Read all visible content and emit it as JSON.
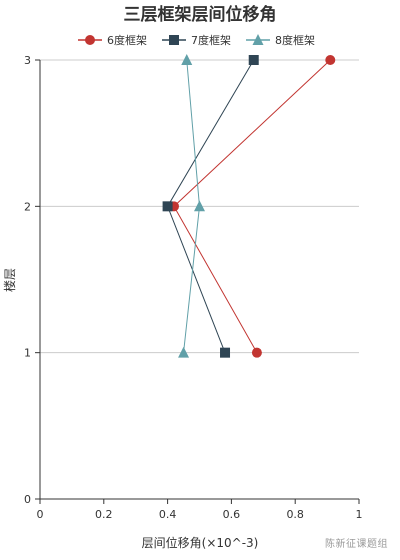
{
  "chart_data": {
    "type": "line",
    "title": "三层框架层间位移角",
    "xlabel": "层间位移角(×10^-3)",
    "ylabel": "楼层",
    "xlim": [
      0,
      1
    ],
    "ylim": [
      0,
      3
    ],
    "x_ticks": [
      "0",
      "0.2",
      "0.4",
      "0.6",
      "0.8",
      "1"
    ],
    "y_ticks": [
      "0",
      "1",
      "2",
      "3"
    ],
    "grid": "horizontal",
    "legend_position": "top-center",
    "series": [
      {
        "name": "6度框架",
        "color": "#c23531",
        "marker": "circle",
        "points": [
          {
            "x": 0.68,
            "y": 1
          },
          {
            "x": 0.42,
            "y": 2
          },
          {
            "x": 0.91,
            "y": 3
          }
        ]
      },
      {
        "name": "7度框架",
        "color": "#2f4554",
        "marker": "square",
        "points": [
          {
            "x": 0.58,
            "y": 1
          },
          {
            "x": 0.4,
            "y": 2
          },
          {
            "x": 0.67,
            "y": 3
          }
        ]
      },
      {
        "name": "8度框架",
        "color": "#61a0a8",
        "marker": "triangle",
        "points": [
          {
            "x": 0.45,
            "y": 1
          },
          {
            "x": 0.5,
            "y": 2
          },
          {
            "x": 0.46,
            "y": 3
          }
        ]
      }
    ]
  },
  "watermark": "陈新征课题组"
}
